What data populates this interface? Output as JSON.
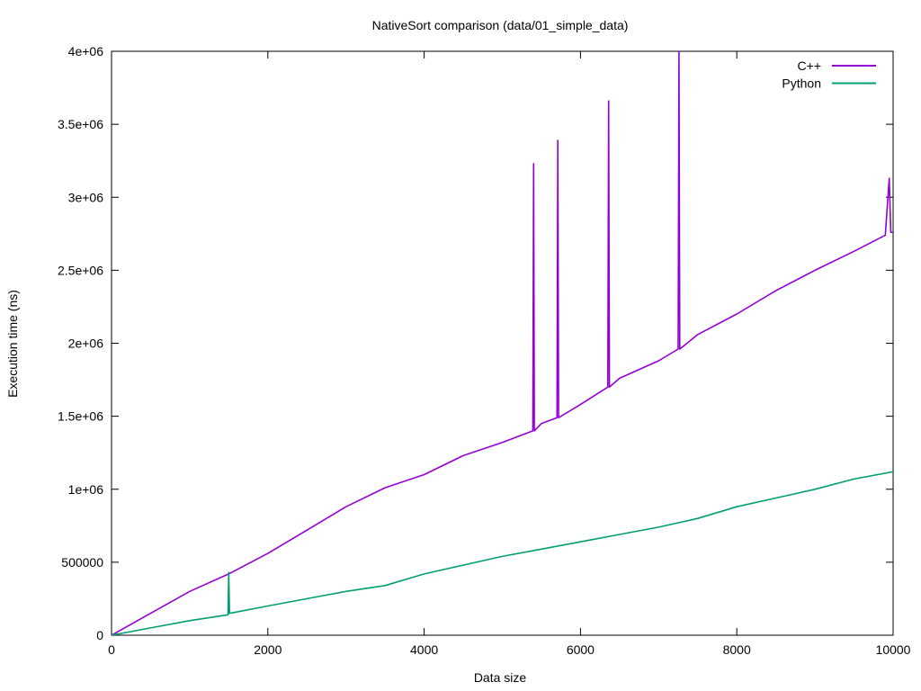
{
  "chart_data": {
    "type": "line",
    "title": "NativeSort comparison (data/01_simple_data)",
    "xlabel": "Data size",
    "ylabel": "Execution time (ns)",
    "xlim": [
      0,
      10000
    ],
    "ylim": [
      0,
      4000000
    ],
    "x_ticks": [
      {
        "value": 0,
        "label": "0"
      },
      {
        "value": 2000,
        "label": "2000"
      },
      {
        "value": 4000,
        "label": "4000"
      },
      {
        "value": 6000,
        "label": "6000"
      },
      {
        "value": 8000,
        "label": "8000"
      },
      {
        "value": 10000,
        "label": "10000"
      }
    ],
    "y_ticks": [
      {
        "value": 0,
        "label": "0"
      },
      {
        "value": 500000,
        "label": "500000"
      },
      {
        "value": 1000000,
        "label": "1e+06"
      },
      {
        "value": 1500000,
        "label": "1.5e+06"
      },
      {
        "value": 2000000,
        "label": "2e+06"
      },
      {
        "value": 2500000,
        "label": "2.5e+06"
      },
      {
        "value": 3000000,
        "label": "3e+06"
      },
      {
        "value": 3500000,
        "label": "3.5e+06"
      },
      {
        "value": 4000000,
        "label": "4e+06"
      }
    ],
    "grid": false,
    "legend_position": "top-right",
    "series": [
      {
        "name": "C++",
        "color": "#9400d3",
        "x": [
          0,
          500,
          1000,
          1500,
          2000,
          2500,
          3000,
          3500,
          4000,
          4500,
          5000,
          5390,
          5400,
          5410,
          5500,
          5700,
          5710,
          5720,
          6000,
          6350,
          6360,
          6370,
          6500,
          7000,
          7250,
          7260,
          7270,
          7500,
          8000,
          8500,
          9000,
          9500,
          9900,
          9950,
          9970,
          10000
        ],
        "y": [
          0,
          150000,
          300000,
          420000,
          560000,
          720000,
          880000,
          1010000,
          1100000,
          1230000,
          1320000,
          1400000,
          3230000,
          1400000,
          1450000,
          1490000,
          3390000,
          1490000,
          1580000,
          1700000,
          3660000,
          1700000,
          1760000,
          1880000,
          1960000,
          4000000,
          1960000,
          2060000,
          2200000,
          2360000,
          2500000,
          2630000,
          2740000,
          3130000,
          2760000,
          2760000
        ]
      },
      {
        "name": "Python",
        "color": "#009e73",
        "x": [
          0,
          500,
          1000,
          1490,
          1500,
          1510,
          2000,
          2500,
          3000,
          3500,
          4000,
          4500,
          5000,
          5500,
          6000,
          6500,
          7000,
          7500,
          8000,
          8500,
          9000,
          9500,
          10000
        ],
        "y": [
          0,
          50000,
          100000,
          140000,
          430000,
          150000,
          200000,
          250000,
          300000,
          340000,
          420000,
          480000,
          540000,
          590000,
          640000,
          690000,
          740000,
          800000,
          880000,
          940000,
          1000000,
          1070000,
          1120000
        ]
      }
    ]
  }
}
